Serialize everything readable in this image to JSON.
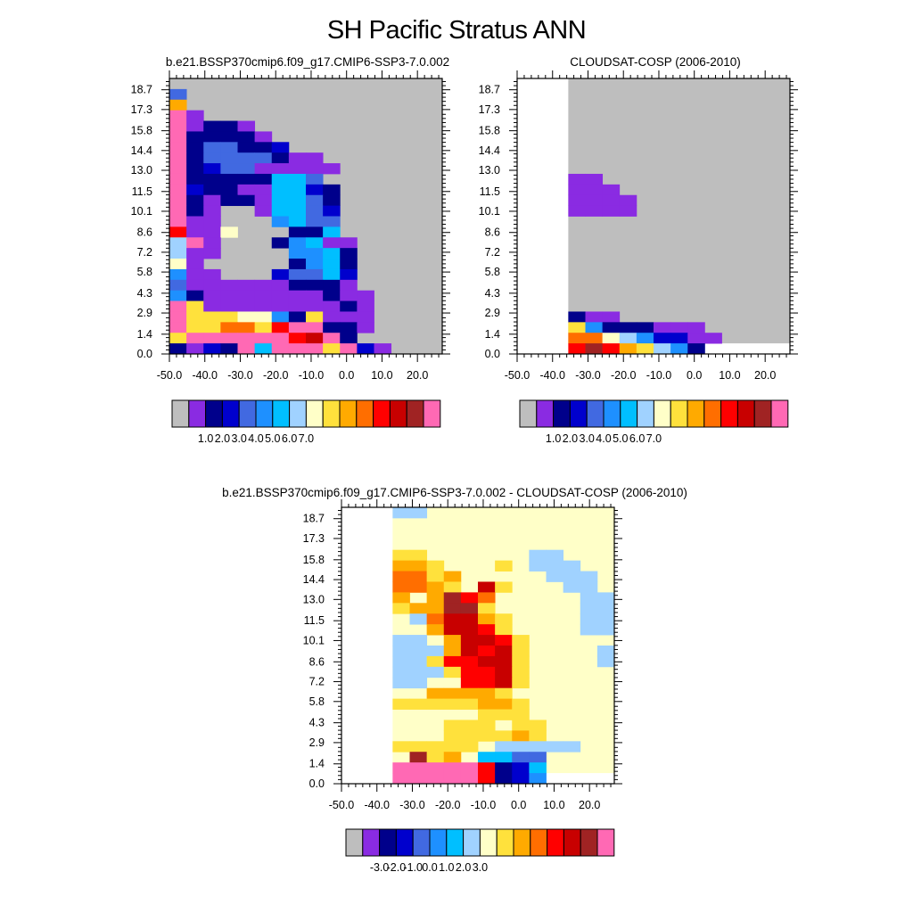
{
  "title": "SH Pacific Stratus ANN",
  "colors": {
    "palette": [
      "#bebebe",
      "#8a2be2",
      "#00008b",
      "#0000cd",
      "#4169e1",
      "#1e90ff",
      "#00bfff",
      "#a0d2ff",
      "#ffffc8",
      "#ffe13c",
      "#ffaa00",
      "#ff6e00",
      "#ff0000",
      "#c80000",
      "#a02323",
      "#ff69b4"
    ]
  },
  "chart_data": [
    {
      "type": "heatmap",
      "title": "b.e21.BSSP370cmip6.f09_g17.CMIP6-SSP3-7.0.002",
      "x_ticks": [
        "-50.0",
        "-40.0",
        "-30.0",
        "-20.0",
        "-10.0",
        "0.0",
        "10.0",
        "20.0"
      ],
      "y_ticks": [
        "0.0",
        "1.4",
        "2.9",
        "4.3",
        "5.8",
        "7.2",
        "8.6",
        "10.1",
        "11.5",
        "13.0",
        "14.4",
        "15.8",
        "17.3",
        "18.7"
      ],
      "xlim": [
        -50,
        27
      ],
      "ylim": [
        0,
        19.5
      ],
      "colorbar_labels": [
        "1.0",
        "2.0",
        "3.0",
        "4.0",
        "5.0",
        "6.0",
        "7.0"
      ],
      "grid_rows": [
        "0000000000000000",
        "4000000000000000",
        "A000000000000000",
        "F100000000000000",
        "F122000000000000",
        "F144220000000000",
        "F331121000000000",
        "F333331000000000",
        "F333311100000000",
        "F222216400000000",
        "F222216420000000",
        "F211216630000000",
        "F211115632000000",
        "F110052642000000",
        "CF00011442000000",
        "7F1001542111000",
        "7101000544200000",
        "8101000546200000",
        "516003444430000",
        "F511155432000000",
        "6211111122100000",
        "F7112222332100000",
        "911111111111000",
        "F999BB96621000",
        "529CFFFFCD90000",
        "212566F55511000"
      ],
      "note": "row strings listed from top to bottom; each character is a palette index in hex"
    },
    {
      "type": "heatmap",
      "title": "CLOUDSAT-COSP (2006-2010)",
      "x_ticks": [
        "-50.0",
        "-40.0",
        "-30.0",
        "-20.0",
        "-10.0",
        "0.0",
        "10.0",
        "20.0"
      ],
      "y_ticks": [
        "0.0",
        "1.4",
        "2.9",
        "4.3",
        "5.8",
        "7.2",
        "8.6",
        "10.1",
        "11.5",
        "13.0",
        "14.4",
        "15.8",
        "17.3",
        "18.7"
      ],
      "xlim": [
        -50,
        27
      ],
      "ylim": [
        0,
        19.5
      ],
      "colorbar_labels": [
        "1.0",
        "2.0",
        "3.0",
        "4.0",
        "5.0",
        "6.0",
        "7.0"
      ]
    },
    {
      "type": "heatmap",
      "title": "b.e21.BSSP370cmip6.f09_g17.CMIP6-SSP3-7.0.002 - CLOUDSAT-COSP (2006-2010)",
      "x_ticks": [
        "-50.0",
        "-40.0",
        "-30.0",
        "-20.0",
        "-10.0",
        "0.0",
        "10.0",
        "20.0"
      ],
      "y_ticks": [
        "0.0",
        "1.4",
        "2.9",
        "4.3",
        "5.8",
        "7.2",
        "8.6",
        "10.1",
        "11.5",
        "13.0",
        "14.4",
        "15.8",
        "17.3",
        "18.7"
      ],
      "xlim": [
        -50,
        27
      ],
      "ylim": [
        0,
        19.5
      ],
      "colorbar_labels": [
        "-3.0",
        "-2.0",
        "-1.0",
        "0.0",
        "1.0",
        "2.0",
        "3.0"
      ]
    }
  ]
}
